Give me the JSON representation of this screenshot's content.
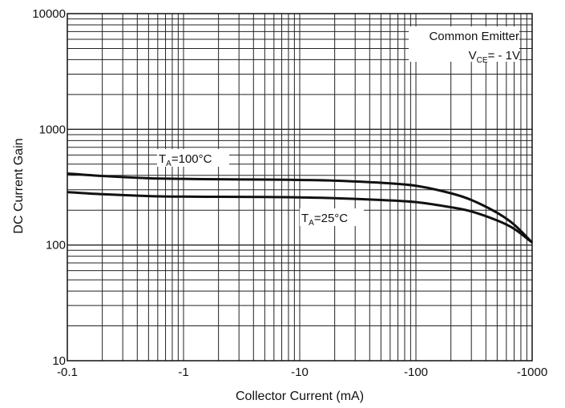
{
  "chart_data": {
    "type": "line",
    "xlabel": "Collector Current (mA)",
    "ylabel": "DC Current Gain",
    "x_scale": "log",
    "y_scale": "log",
    "xlim": [
      -0.1,
      -1000
    ],
    "ylim": [
      10,
      10000
    ],
    "x_ticks": [
      -0.1,
      -1,
      -10,
      -100,
      -1000
    ],
    "x_tick_labels": [
      "-0.1",
      "-1",
      "-10",
      "-100",
      "-1000"
    ],
    "y_ticks": [
      10,
      100,
      1000,
      10000
    ],
    "y_tick_labels": [
      "10",
      "100",
      "1000",
      "10000"
    ],
    "grid": true,
    "conditions": {
      "line1": "Common Emitter",
      "line2_main": "V",
      "line2_sub": "CE",
      "line2_rest": "= - 1V"
    },
    "series": [
      {
        "name": "TA=100°C",
        "label_main": "T",
        "label_sub": "A",
        "label_rest": "=100°C",
        "x": [
          -0.1,
          -0.2,
          -0.5,
          -1,
          -2,
          -5,
          -10,
          -20,
          -50,
          -100,
          -200,
          -300,
          -500,
          -700,
          -1000
        ],
        "y": [
          415,
          395,
          378,
          373,
          370,
          368,
          365,
          360,
          345,
          325,
          280,
          245,
          190,
          150,
          105
        ]
      },
      {
        "name": "TA=25°C",
        "label_main": "T",
        "label_sub": "A",
        "label_rest": "=25°C",
        "x": [
          -0.1,
          -0.2,
          -0.5,
          -1,
          -2,
          -5,
          -10,
          -20,
          -50,
          -100,
          -200,
          -300,
          -500,
          -700,
          -1000
        ],
        "y": [
          287,
          275,
          265,
          262,
          261,
          260,
          258,
          254,
          245,
          235,
          212,
          195,
          163,
          138,
          105
        ]
      }
    ]
  }
}
